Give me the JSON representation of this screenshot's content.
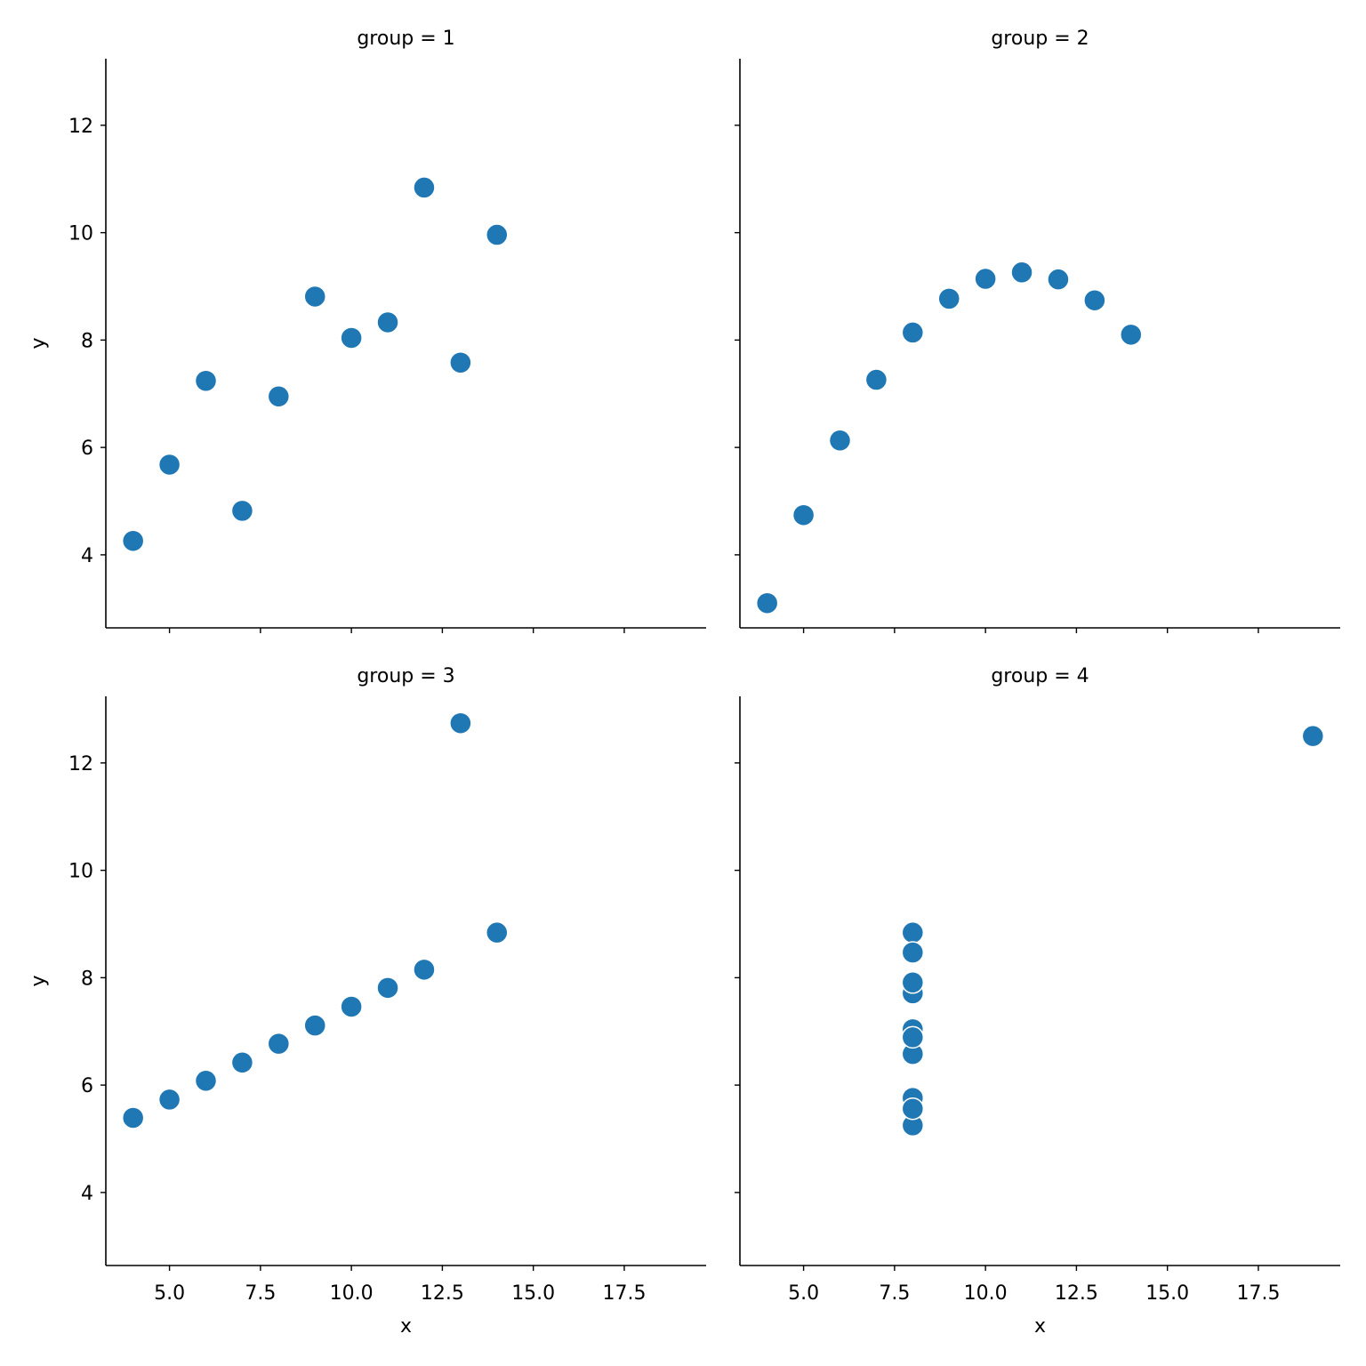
{
  "chart_data": {
    "type": "scatter",
    "xlim": [
      3.25,
      19.75
    ],
    "ylim": [
      2.64,
      13.24
    ],
    "x_ticks": [
      5.0,
      7.5,
      10.0,
      12.5,
      15.0,
      17.5
    ],
    "y_ticks": [
      4,
      6,
      8,
      10,
      12
    ],
    "xlabel": "x",
    "ylabel": "y",
    "grid": false,
    "marker_color": "#1f77b4",
    "marker_edge_color": "#ffffff",
    "panels": [
      {
        "title": "group = 1",
        "x": [
          10,
          8,
          13,
          9,
          11,
          14,
          6,
          4,
          12,
          7,
          5
        ],
        "y": [
          8.04,
          6.95,
          7.58,
          8.81,
          8.33,
          9.96,
          7.24,
          4.26,
          10.84,
          4.82,
          5.68
        ]
      },
      {
        "title": "group = 2",
        "x": [
          10,
          8,
          13,
          9,
          11,
          14,
          6,
          4,
          12,
          7,
          5
        ],
        "y": [
          9.14,
          8.14,
          8.74,
          8.77,
          9.26,
          8.1,
          6.13,
          3.1,
          9.13,
          7.26,
          4.74
        ]
      },
      {
        "title": "group = 3",
        "x": [
          10,
          8,
          13,
          9,
          11,
          14,
          6,
          4,
          12,
          7,
          5
        ],
        "y": [
          7.46,
          6.77,
          12.74,
          7.11,
          7.81,
          8.84,
          6.08,
          5.39,
          8.15,
          6.42,
          5.73
        ]
      },
      {
        "title": "group = 4",
        "x": [
          8,
          8,
          8,
          8,
          8,
          8,
          8,
          19,
          8,
          8,
          8
        ],
        "y": [
          6.58,
          5.76,
          7.71,
          8.84,
          8.47,
          7.04,
          5.25,
          12.5,
          5.56,
          7.91,
          6.89
        ]
      }
    ]
  }
}
